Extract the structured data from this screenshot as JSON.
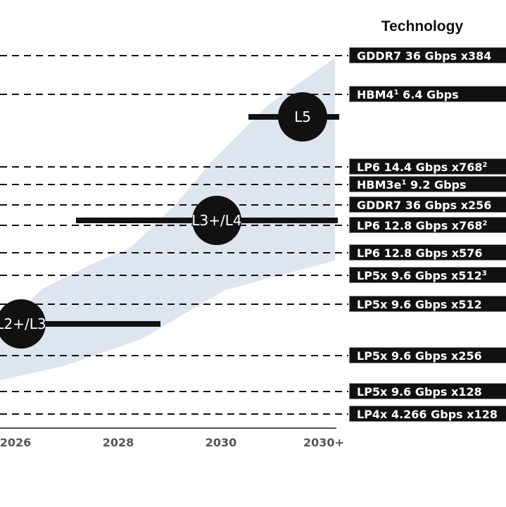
{
  "chart_data": {
    "type": "roadmap",
    "title": "Technology",
    "x_categories": [
      "2026",
      "2028",
      "2030",
      "2030+"
    ],
    "technologies": [
      {
        "label": "GDDR7 36 Gbps x384",
        "sup": ""
      },
      {
        "label": "HBM4 6.4 Gbps",
        "base": "HBM4",
        "sup": "1",
        "rest": " 6.4 Gbps"
      },
      {
        "label": "LP6 14.4 Gbps x768",
        "base": "LP6 14.4 Gbps x768",
        "sup": "2",
        "rest": ""
      },
      {
        "label": "HBM3e 9.2 Gbps",
        "base": "HBM3e",
        "sup": "1",
        "rest": " 9.2 Gbps"
      },
      {
        "label": "GDDR7 36 Gbps x256",
        "sup": ""
      },
      {
        "label": "LP6 12.8 Gbps x768",
        "base": "LP6 12.8 Gbps x768",
        "sup": "2",
        "rest": ""
      },
      {
        "label": "LP6 12.8 Gbps x576",
        "sup": ""
      },
      {
        "label": "LP5x 9.6 Gbps x512",
        "base": "LP5x 9.6 Gbps x512",
        "sup": "3",
        "rest": ""
      },
      {
        "label": "LP5x 9.6 Gbps x512",
        "sup": ""
      },
      {
        "label": "LP5x 9.6 Gbps x256",
        "sup": ""
      },
      {
        "label": "LP5x 9.6 Gbps x128",
        "sup": ""
      },
      {
        "label": "LP4x 4.266 Gbps x128",
        "sup": ""
      }
    ],
    "levels": [
      {
        "label": "L2+/L3",
        "center_year": "2026",
        "span": [
          "2026",
          "2028"
        ],
        "technology": "LP5x 9.6 Gbps x512"
      },
      {
        "label": "L3+/L4",
        "center_year": "2030",
        "span": [
          "2027",
          "2030+"
        ],
        "technology": "LP6 12.8 Gbps x768"
      },
      {
        "label": "L5",
        "center_year": "2030+",
        "span": [
          "2029",
          "2030+"
        ],
        "technology": "HBM4 6.4 Gbps"
      }
    ],
    "band_color": "#dde3ee",
    "grid": "dashed horizontal per technology"
  }
}
